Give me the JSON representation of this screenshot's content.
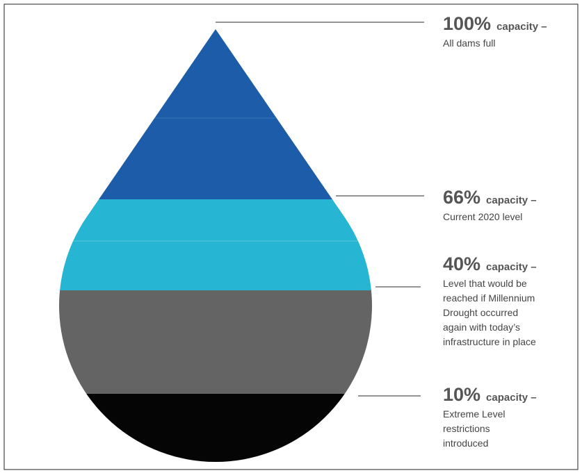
{
  "levels": [
    {
      "percent": "100%",
      "label": "capacity –",
      "description": [
        "All dams full"
      ]
    },
    {
      "percent": "66%",
      "label": "capacity –",
      "description": [
        "Current 2020 level"
      ]
    },
    {
      "percent": "40%",
      "label": "capacity –",
      "description": [
        "Level that would be",
        "reached if Millennium",
        "Drought occurred",
        "again with today’s",
        "infrastructure in place"
      ]
    },
    {
      "percent": "10%",
      "label": "capacity –",
      "description": [
        "Extreme Level",
        "restrictions",
        "introduced"
      ]
    }
  ]
}
